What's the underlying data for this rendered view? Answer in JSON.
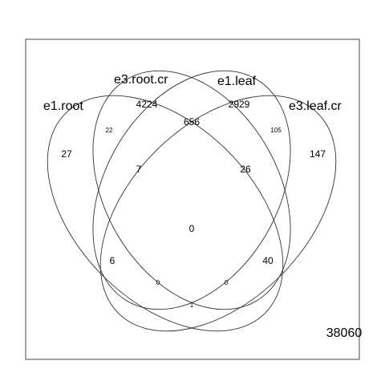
{
  "sets": {
    "e1_root": "e1.root",
    "e3_root_cr": "e3.root.cr",
    "e1_leaf": "e1.leaf",
    "e3_leaf_cr": "e3.leaf.cr"
  },
  "regions": {
    "only_e1_root": "27",
    "only_e3_root_cr": "4224",
    "only_e1_leaf": "2929",
    "only_e3_leaf_cr": "147",
    "e1_root__e3_root_cr": "22",
    "e3_root_cr__e1_leaf": "656",
    "e1_leaf__e3_leaf_cr": "105",
    "e1_root__e3_root_cr__e1_leaf": "7",
    "e3_root_cr__e1_leaf__e3_leaf_cr": "26",
    "all_four": "0",
    "e1_root__e3_root_cr__e3_leaf_cr": "6",
    "e1_root__e1_leaf__e3_leaf_cr": "40",
    "e1_root__e3_leaf_cr": "0",
    "e1_root__e3_root_cr__e3_leaf_cr_inner": "0",
    "e1_root__e1_leaf": "1"
  },
  "outside_count": "38060"
}
